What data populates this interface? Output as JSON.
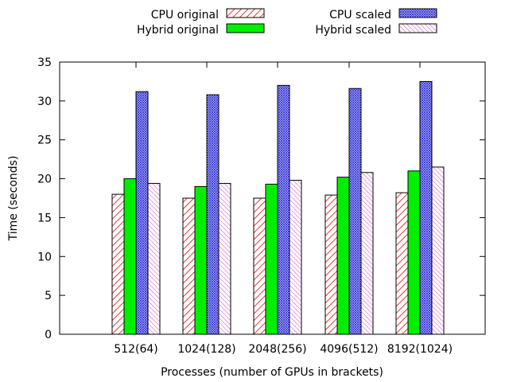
{
  "chart_data": {
    "type": "bar",
    "title": "",
    "xlabel": "Processes (number of GPUs in brackets)",
    "ylabel": "Time (seconds)",
    "ylim": [
      0,
      35
    ],
    "yticks": [
      0,
      5,
      10,
      15,
      20,
      25,
      30,
      35
    ],
    "grid": false,
    "legend_position": "top-center",
    "categories": [
      "512(64)",
      "1024(128)",
      "2048(256)",
      "4096(512)",
      "8192(1024)"
    ],
    "series": [
      {
        "name": "CPU original",
        "values": [
          18.0,
          17.5,
          17.5,
          17.9,
          18.2
        ],
        "color": "#e8383b",
        "pattern": "diagonal-hatch"
      },
      {
        "name": "Hybrid original",
        "values": [
          20.0,
          19.0,
          19.3,
          20.2,
          21.0
        ],
        "color": "#00ee00",
        "pattern": "solid"
      },
      {
        "name": "CPU scaled",
        "values": [
          31.2,
          30.8,
          32.0,
          31.6,
          32.5
        ],
        "color": "#2a2ad0",
        "pattern": "crosshatch"
      },
      {
        "name": "Hybrid scaled",
        "values": [
          19.4,
          19.4,
          19.8,
          20.8,
          21.5
        ],
        "color": "#d040d0",
        "pattern": "diagonal-hatch"
      }
    ]
  }
}
